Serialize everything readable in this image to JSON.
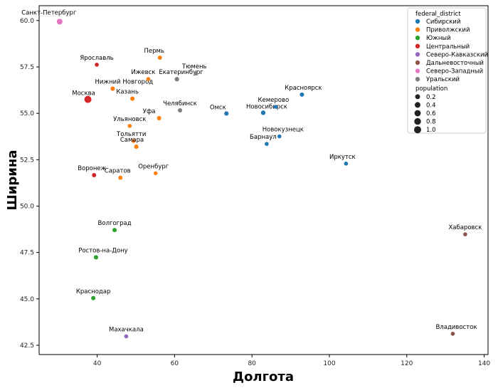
{
  "chart_data": {
    "type": "scatter",
    "xlabel": "Долгота",
    "ylabel": "Ширина",
    "xlim": [
      25,
      141
    ],
    "ylim": [
      42.0,
      60.8
    ],
    "xticks": [
      40,
      60,
      80,
      100,
      120,
      140
    ],
    "yticks": [
      42.5,
      45.0,
      47.5,
      50.0,
      52.5,
      55.0,
      57.5,
      60.0
    ],
    "ytick_labels": [
      "42.5",
      "45.0",
      "47.5",
      "50.0",
      "52.5",
      "55.0",
      "57.5",
      "60.0"
    ],
    "grid": false,
    "legend_placement": "top-right",
    "hue_title": "federal_district",
    "size_title": "population",
    "districts": [
      {
        "name": "Сибирский",
        "color": "#1f77b4"
      },
      {
        "name": "Приволжский",
        "color": "#ff7f0e"
      },
      {
        "name": "Южный",
        "color": "#2ca02c"
      },
      {
        "name": "Центральный",
        "color": "#d62728"
      },
      {
        "name": "Северо-Кавказский",
        "color": "#9467bd"
      },
      {
        "name": "Дальневосточный",
        "color": "#8c564b"
      },
      {
        "name": "Северо-Западный",
        "color": "#e377c2"
      },
      {
        "name": "Уральский",
        "color": "#7f7f7f"
      }
    ],
    "size_legend": [
      {
        "label": "0.2",
        "value": 0.2
      },
      {
        "label": "0.4",
        "value": 0.4
      },
      {
        "label": "0.6",
        "value": 0.6
      },
      {
        "label": "0.8",
        "value": 0.8
      },
      {
        "label": "1.0",
        "value": 1.0
      }
    ],
    "points": [
      {
        "name": "Санкт-Петербург",
        "x": 30.3,
        "y": 59.94,
        "district": "Северо-Западный",
        "population": 0.43
      },
      {
        "name": "Москва",
        "x": 37.6,
        "y": 55.75,
        "district": "Центральный",
        "population": 1.0
      },
      {
        "name": "Ярославль",
        "x": 39.9,
        "y": 57.62,
        "district": "Центральный",
        "population": 0.05
      },
      {
        "name": "Воронеж",
        "x": 39.2,
        "y": 51.67,
        "district": "Центральный",
        "population": 0.08
      },
      {
        "name": "Нижний Новгород",
        "x": 44.0,
        "y": 56.33,
        "district": "Приволжский",
        "population": 0.1
      },
      {
        "name": "Ижевск",
        "x": 53.2,
        "y": 56.85,
        "district": "Приволжский",
        "population": 0.05
      },
      {
        "name": "Пермь",
        "x": 56.2,
        "y": 58.0,
        "district": "Приволжский",
        "population": 0.08
      },
      {
        "name": "Казань",
        "x": 49.1,
        "y": 55.79,
        "district": "Приволжский",
        "population": 0.1
      },
      {
        "name": "Уфа",
        "x": 56.0,
        "y": 54.74,
        "district": "Приволжский",
        "population": 0.09
      },
      {
        "name": "Ульяновск",
        "x": 48.4,
        "y": 54.32,
        "district": "Приволжский",
        "population": 0.05
      },
      {
        "name": "Тольятти",
        "x": 49.4,
        "y": 53.51,
        "district": "Приволжский",
        "population": 0.06
      },
      {
        "name": "Самара",
        "x": 50.1,
        "y": 53.2,
        "district": "Приволжский",
        "population": 0.09
      },
      {
        "name": "Оренбург",
        "x": 55.1,
        "y": 51.77,
        "district": "Приволжский",
        "population": 0.04
      },
      {
        "name": "Саратов",
        "x": 46.0,
        "y": 51.53,
        "district": "Приволжский",
        "population": 0.07
      },
      {
        "name": "Екатеринбург",
        "x": 60.6,
        "y": 56.84,
        "district": "Уральский",
        "population": 0.12
      },
      {
        "name": "Тюмень",
        "x": 65.5,
        "y": 57.15,
        "district": "Уральский",
        "population": 0.06
      },
      {
        "name": "Челябинск",
        "x": 61.4,
        "y": 55.16,
        "district": "Уральский",
        "population": 0.09
      },
      {
        "name": "Омск",
        "x": 73.4,
        "y": 54.99,
        "district": "Сибирский",
        "population": 0.09
      },
      {
        "name": "Новосибирск",
        "x": 82.9,
        "y": 55.03,
        "district": "Сибирский",
        "population": 0.13
      },
      {
        "name": "Кемерово",
        "x": 86.1,
        "y": 55.35,
        "district": "Сибирский",
        "population": 0.04
      },
      {
        "name": "Красноярск",
        "x": 92.9,
        "y": 56.01,
        "district": "Сибирский",
        "population": 0.08
      },
      {
        "name": "Новокузнецк",
        "x": 87.1,
        "y": 53.76,
        "district": "Сибирский",
        "population": 0.04
      },
      {
        "name": "Барнаул",
        "x": 83.8,
        "y": 53.35,
        "district": "Сибирский",
        "population": 0.05
      },
      {
        "name": "Иркутск",
        "x": 104.3,
        "y": 52.29,
        "district": "Сибирский",
        "population": 0.05
      },
      {
        "name": "Хабаровск",
        "x": 135.1,
        "y": 48.48,
        "district": "Дальневосточный",
        "population": 0.05
      },
      {
        "name": "Владивосток",
        "x": 131.9,
        "y": 43.12,
        "district": "Дальневосточный",
        "population": 0.05
      },
      {
        "name": "Волгоград",
        "x": 44.5,
        "y": 48.71,
        "district": "Южный",
        "population": 0.08
      },
      {
        "name": "Ростов-на-Дону",
        "x": 39.7,
        "y": 47.24,
        "district": "Южный",
        "population": 0.09
      },
      {
        "name": "Краснодар",
        "x": 39.0,
        "y": 45.04,
        "district": "Южный",
        "population": 0.08
      },
      {
        "name": "Махачкала",
        "x": 47.5,
        "y": 42.98,
        "district": "Северо-Кавказский",
        "population": 0.05
      }
    ]
  }
}
